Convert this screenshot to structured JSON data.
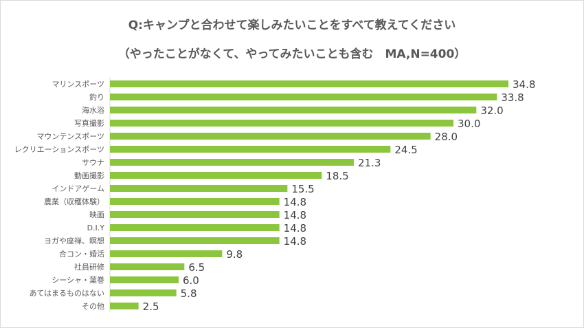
{
  "chart_data": {
    "type": "bar",
    "orientation": "horizontal",
    "title": "Q:キャンプと合わせて楽しみたいことをすべて教えてください",
    "subtitle": "（やったことがなくて、やってみたいことも含む　MA,N=400）",
    "categories": [
      "マリンスポーツ",
      "釣り",
      "海水浴",
      "写真撮影",
      "マウンテンスポーツ",
      "レクリエーションスポーツ",
      "サウナ",
      "動画撮影",
      "インドアゲーム",
      "農業（収穫体験）",
      "映画",
      "D.I.Y",
      "ヨガや座禅、瞑想",
      "合コン・婚活",
      "社員研修",
      "シーシャ・葉巻",
      "あてはまるものはない",
      "その他"
    ],
    "values": [
      34.8,
      33.8,
      32.0,
      30.0,
      28.0,
      24.5,
      21.3,
      18.5,
      15.5,
      14.8,
      14.8,
      14.8,
      14.8,
      9.8,
      6.5,
      6.0,
      5.8,
      2.5
    ],
    "xlim": [
      0,
      35
    ],
    "grid": false,
    "bar_color": "#8cc63e",
    "xlabel": "",
    "ylabel": ""
  }
}
